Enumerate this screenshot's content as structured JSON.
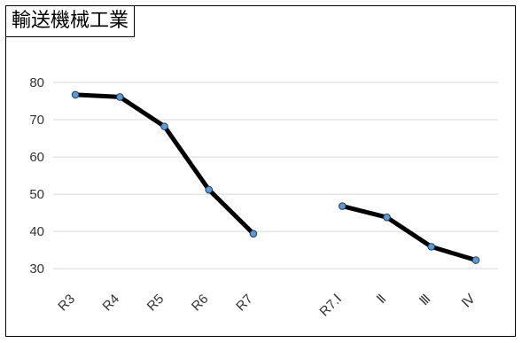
{
  "chart_data": {
    "type": "line",
    "title": "輸送機械工業",
    "categories": [
      "R3",
      "R4",
      "R5",
      "R6",
      "R7",
      "",
      "R7.Ⅰ",
      "Ⅱ",
      "Ⅲ",
      "Ⅳ"
    ],
    "series": [
      {
        "values": [
          76.7,
          76.1,
          68.2,
          51.2,
          39.4,
          null,
          46.8,
          43.8,
          35.9,
          32.3
        ],
        "color": "#000000",
        "marker_color": "#5B9BD5"
      }
    ],
    "yticks": [
      30,
      40,
      50,
      60,
      70,
      80
    ],
    "ylim": [
      26,
      85
    ],
    "grid": true,
    "legend": "none",
    "xlabel": "",
    "ylabel": ""
  }
}
